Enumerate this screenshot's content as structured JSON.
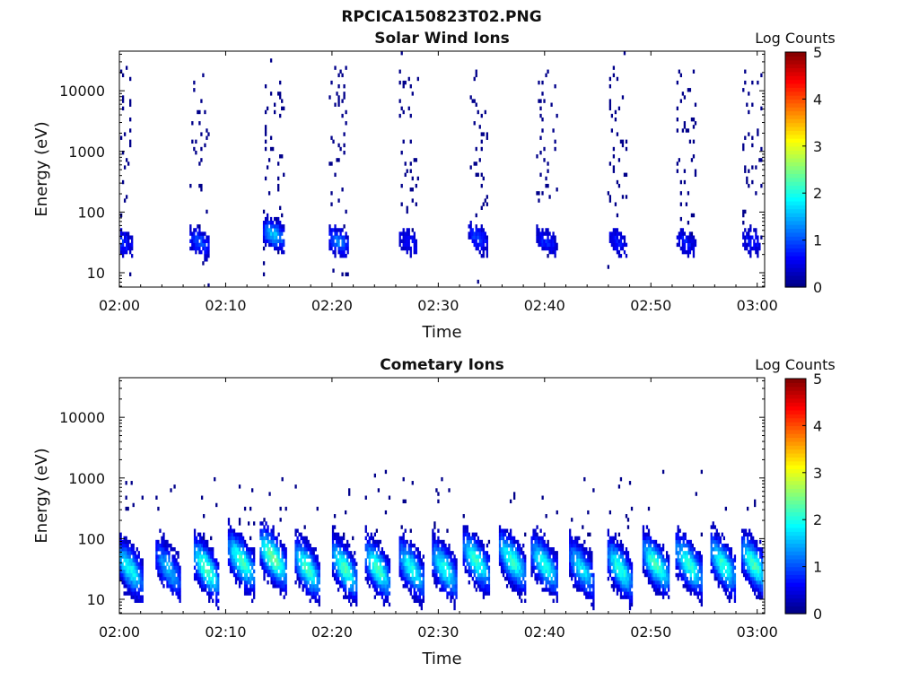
{
  "figure": {
    "title": "RPCICA150823T02.PNG"
  },
  "chart_data": [
    {
      "type": "heatmap",
      "title": "Solar Wind Ions",
      "xlabel": "Time",
      "ylabel": "Energy (eV)",
      "x_ticks": [
        "02:00",
        "02:10",
        "02:20",
        "02:30",
        "02:40",
        "02:50",
        "03:00"
      ],
      "x_range_minutes": [
        0,
        60.7
      ],
      "y_ticks": [
        "10",
        "100",
        "1000",
        "10000"
      ],
      "y_scale": "log",
      "y_range": [
        5.8,
        45000
      ],
      "colorbar": {
        "label": "Log Counts",
        "ticks": [
          "0",
          "1",
          "2",
          "3",
          "4",
          "5"
        ],
        "range": [
          0,
          5
        ],
        "colormap": "jet"
      },
      "sweeps": [
        {
          "t": 0.3,
          "peak_e": 30,
          "peak_v": 0.8,
          "width": 1.8
        },
        {
          "t": 7.5,
          "peak_e": 30,
          "peak_v": 1.0,
          "width": 1.8
        },
        {
          "t": 14.5,
          "peak_e": 40,
          "peak_v": 1.6,
          "width": 2.0
        },
        {
          "t": 20.6,
          "peak_e": 30,
          "peak_v": 1.3,
          "width": 1.8
        },
        {
          "t": 27.2,
          "peak_e": 30,
          "peak_v": 0.7,
          "width": 1.8
        },
        {
          "t": 33.7,
          "peak_e": 35,
          "peak_v": 0.9,
          "width": 1.8
        },
        {
          "t": 40.2,
          "peak_e": 30,
          "peak_v": 0.8,
          "width": 2.0
        },
        {
          "t": 46.8,
          "peak_e": 30,
          "peak_v": 0.7,
          "width": 1.8
        },
        {
          "t": 53.3,
          "peak_e": 30,
          "peak_v": 0.7,
          "width": 1.8
        },
        {
          "t": 59.5,
          "peak_e": 30,
          "peak_v": 0.7,
          "width": 1.8
        }
      ]
    },
    {
      "type": "heatmap",
      "title": "Cometary Ions",
      "xlabel": "Time",
      "ylabel": "Energy (eV)",
      "x_ticks": [
        "02:00",
        "02:10",
        "02:20",
        "02:30",
        "02:40",
        "02:50",
        "03:00"
      ],
      "x_range_minutes": [
        0,
        60.7
      ],
      "y_ticks": [
        "10",
        "100",
        "1000",
        "10000"
      ],
      "y_scale": "log",
      "y_range": [
        5.8,
        45000
      ],
      "colorbar": {
        "label": "Log Counts",
        "ticks": [
          "0",
          "1",
          "2",
          "3",
          "4",
          "5"
        ],
        "range": [
          0,
          5
        ],
        "colormap": "jet"
      },
      "sweeps": [
        {
          "t": 1.0,
          "peak_e": 30,
          "peak_v": 1.9,
          "width": 2.6
        },
        {
          "t": 4.6,
          "peak_e": 30,
          "peak_v": 1.5,
          "width": 2.4
        },
        {
          "t": 8.2,
          "peak_e": 30,
          "peak_v": 2.3,
          "width": 2.4
        },
        {
          "t": 11.5,
          "peak_e": 40,
          "peak_v": 2.2,
          "width": 2.6
        },
        {
          "t": 14.5,
          "peak_e": 45,
          "peak_v": 2.4,
          "width": 2.6
        },
        {
          "t": 17.7,
          "peak_e": 30,
          "peak_v": 2.2,
          "width": 2.4
        },
        {
          "t": 21.2,
          "peak_e": 30,
          "peak_v": 2.2,
          "width": 2.4
        },
        {
          "t": 24.3,
          "peak_e": 30,
          "peak_v": 2.2,
          "width": 2.4
        },
        {
          "t": 27.5,
          "peak_e": 30,
          "peak_v": 2.0,
          "width": 2.4
        },
        {
          "t": 30.6,
          "peak_e": 30,
          "peak_v": 2.0,
          "width": 2.4
        },
        {
          "t": 33.6,
          "peak_e": 40,
          "peak_v": 2.1,
          "width": 2.6
        },
        {
          "t": 37.0,
          "peak_e": 40,
          "peak_v": 2.1,
          "width": 2.6
        },
        {
          "t": 40.0,
          "peak_e": 35,
          "peak_v": 2.0,
          "width": 2.6
        },
        {
          "t": 43.5,
          "peak_e": 30,
          "peak_v": 1.8,
          "width": 2.4
        },
        {
          "t": 47.1,
          "peak_e": 30,
          "peak_v": 2.1,
          "width": 2.4
        },
        {
          "t": 50.5,
          "peak_e": 35,
          "peak_v": 2.2,
          "width": 2.6
        },
        {
          "t": 53.6,
          "peak_e": 35,
          "peak_v": 2.1,
          "width": 2.6
        },
        {
          "t": 56.8,
          "peak_e": 35,
          "peak_v": 2.1,
          "width": 2.4
        },
        {
          "t": 59.7,
          "peak_e": 35,
          "peak_v": 2.2,
          "width": 2.4
        }
      ]
    }
  ]
}
